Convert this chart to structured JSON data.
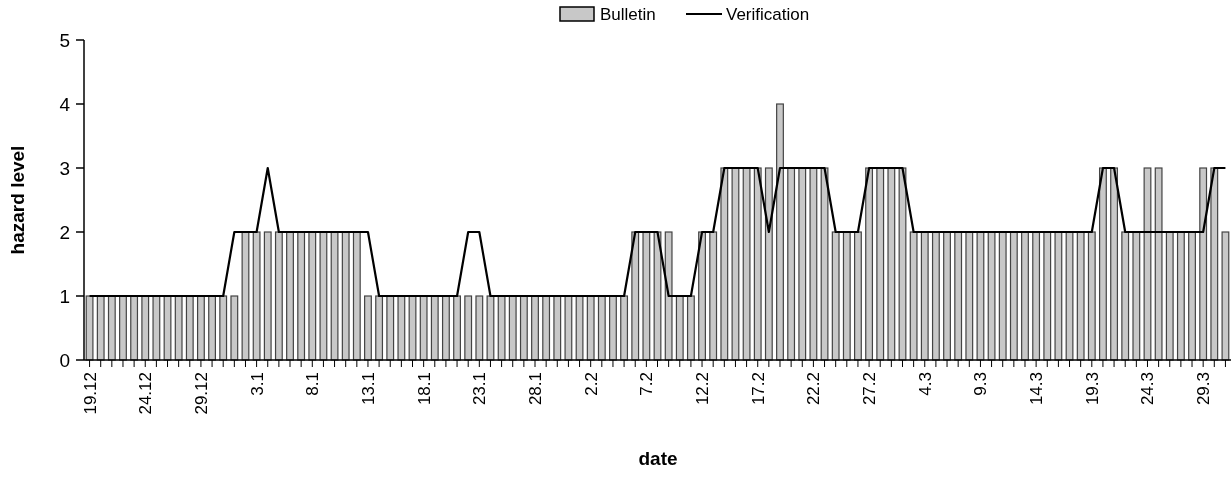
{
  "chart_data": {
    "type": "bar",
    "xlabel": "date",
    "ylabel": "hazard level",
    "ylim": [
      0,
      5
    ],
    "yticks": [
      0,
      1,
      2,
      3,
      4,
      5
    ],
    "legend": "top",
    "categories": [
      "19.12",
      null,
      null,
      null,
      null,
      "24.12",
      null,
      null,
      null,
      null,
      "29.12",
      null,
      null,
      null,
      null,
      "3.1",
      null,
      null,
      null,
      null,
      "8.1",
      null,
      null,
      null,
      null,
      "13.1",
      null,
      null,
      null,
      null,
      "18.1",
      null,
      null,
      null,
      null,
      "23.1",
      null,
      null,
      null,
      null,
      "28.1",
      null,
      null,
      null,
      null,
      "2.2",
      null,
      null,
      null,
      null,
      "7.2",
      null,
      null,
      null,
      null,
      "12.2",
      null,
      null,
      null,
      null,
      "17.2",
      null,
      null,
      null,
      null,
      "22.2",
      null,
      null,
      null,
      null,
      "27.2",
      null,
      null,
      null,
      null,
      "4.3",
      null,
      null,
      null,
      null,
      "9.3",
      null,
      null,
      null,
      null,
      "14.3",
      null,
      null,
      null,
      null,
      "19.3",
      null,
      null,
      null,
      null,
      "24.3",
      null,
      null,
      null,
      null,
      "29.3",
      null,
      null
    ],
    "series": [
      {
        "name": "Bulletin",
        "color": "#c8c8c8",
        "values": [
          1,
          1,
          1,
          1,
          1,
          1,
          1,
          1,
          1,
          1,
          1,
          1,
          1,
          1,
          2,
          2,
          2,
          2,
          2,
          2,
          2,
          2,
          2,
          2,
          2,
          1,
          1,
          1,
          1,
          1,
          1,
          1,
          1,
          1,
          1,
          1,
          1,
          1,
          1,
          1,
          1,
          1,
          1,
          1,
          1,
          1,
          1,
          1,
          1,
          2,
          2,
          2,
          2,
          1,
          1,
          2,
          2,
          3,
          3,
          3,
          3,
          3,
          4,
          3,
          3,
          3,
          3,
          2,
          2,
          2,
          3,
          3,
          3,
          3,
          2,
          2,
          2,
          2,
          2,
          2,
          2,
          2,
          2,
          2,
          2,
          2,
          2,
          2,
          2,
          2,
          2,
          3,
          3,
          2,
          2,
          3,
          3,
          2,
          2,
          2,
          3,
          3,
          2
        ]
      },
      {
        "name": "Verification",
        "type": "line",
        "color": "#000000",
        "values": [
          1,
          1,
          1,
          1,
          1,
          1,
          1,
          1,
          1,
          1,
          1,
          1,
          1,
          2,
          2,
          2,
          3,
          2,
          2,
          2,
          2,
          2,
          2,
          2,
          2,
          2,
          1,
          1,
          1,
          1,
          1,
          1,
          1,
          1,
          2,
          2,
          1,
          1,
          1,
          1,
          1,
          1,
          1,
          1,
          1,
          1,
          1,
          1,
          1,
          2,
          2,
          2,
          1,
          1,
          1,
          2,
          2,
          3,
          3,
          3,
          3,
          2,
          3,
          3,
          3,
          3,
          3,
          2,
          2,
          2,
          3,
          3,
          3,
          3,
          2,
          2,
          2,
          2,
          2,
          2,
          2,
          2,
          2,
          2,
          2,
          2,
          2,
          2,
          2,
          2,
          2,
          3,
          3,
          2,
          2,
          2,
          2,
          2,
          2,
          2,
          2,
          3,
          3
        ]
      }
    ]
  }
}
